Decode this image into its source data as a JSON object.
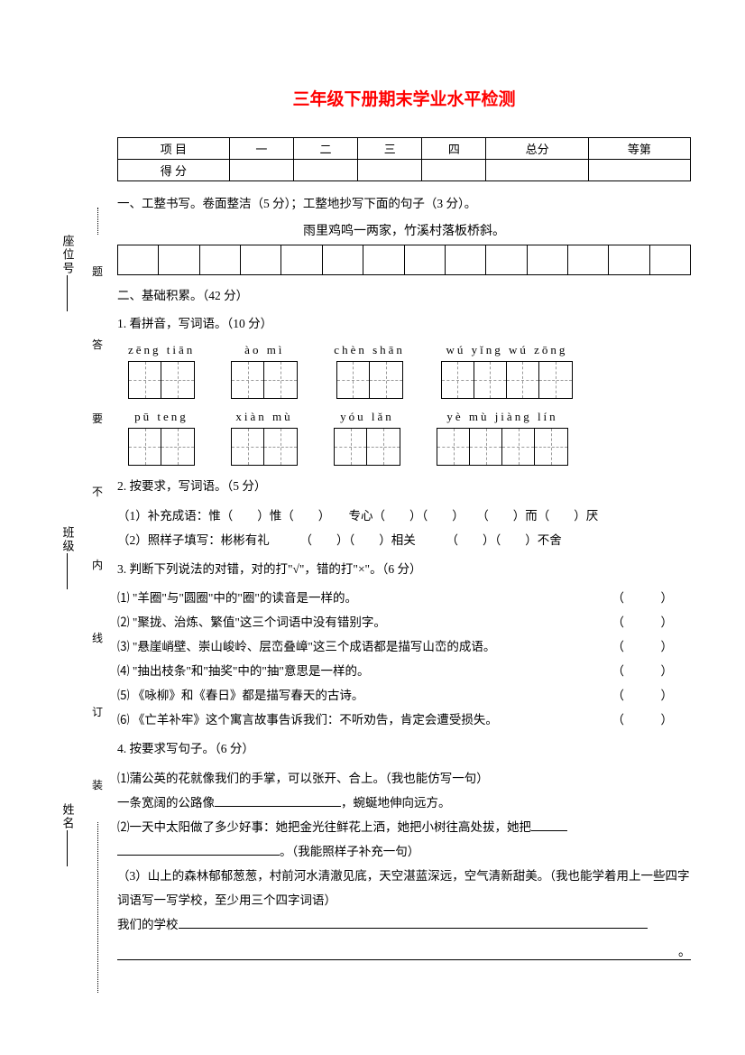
{
  "title": "三年级下册期末学业水平检测",
  "score_table": {
    "headers": [
      "项 目",
      "一",
      "二",
      "三",
      "四",
      "总分",
      "等第"
    ],
    "row2_label": "得 分"
  },
  "section1": {
    "heading": "一、工整书写。卷面整洁（5 分）；工整地抄写下面的句子（3 分）。",
    "sentence": "雨里鸡鸣一两家，竹溪村落板桥斜。",
    "grid_cells": 14
  },
  "section2": {
    "heading": "二、基础积累。（42 分）",
    "q1": {
      "label": "1. 看拼音，写词语。（10 分）",
      "row1": [
        {
          "pinyin": "zēng  tiān",
          "boxes": 2
        },
        {
          "pinyin": "ào  mì",
          "boxes": 2
        },
        {
          "pinyin": "chèn  shān",
          "boxes": 2
        },
        {
          "pinyin": "wú  yǐng  wú  zōng",
          "boxes": 4
        }
      ],
      "row2": [
        {
          "pinyin": "pū  teng",
          "boxes": 2
        },
        {
          "pinyin": "xiàn  mù",
          "boxes": 2
        },
        {
          "pinyin": "yóu  lǎn",
          "boxes": 2
        },
        {
          "pinyin": "yè  mù  jiàng  lín",
          "boxes": 4
        }
      ]
    },
    "q2": {
      "label": "2. 按要求，写词语。（5 分）",
      "line1": "（1）补充成语：惟（　　）惟（　　）　　专心（　　）（　　）　　（　　）而（　　）厌",
      "line2": "（2）照样子填写：彬彬有礼　　　（　　）（　　）相关　　　（　　）（　　）不舍"
    },
    "q3": {
      "label": "3. 判断下列说法的对错，对的打\"√\"，错的打\"×\"。（6 分）",
      "items": [
        "⑴ \"羊圈\"与\"圆圈\"中的\"圈\"的读音是一样的。",
        "⑵ \"聚拢、治炼、繁值\"这三个词语中没有错别字。",
        "⑶ \"悬崖峭壁、崇山峻岭、层峦叠嶂\"这三个成语都是描写山峦的成语。",
        "⑷ \"抽出枝条\"和\"抽奖\"中的\"抽\"意思是一样的。",
        "⑸ 《咏柳》和《春日》都是描写春天的古诗。",
        "⑹ 《亡羊补牢》这个寓言故事告诉我们：不听劝告，肯定会遭受损失。"
      ]
    },
    "q4": {
      "label": "4. 按要求写句子。（6 分）",
      "line1": "⑴蒲公英的花就像我们的手掌，可以张开、合上。（我也能仿写一句）",
      "line2a": "一条宽阔的公路像",
      "line2b": "，蜿蜒地伸向远方。",
      "line3": "⑵一天中太阳做了多少好事：她把金光往鲜花上洒，她把小树往高处拔，她把",
      "line4": "。（我能照样子补充一句）",
      "line5": "（3）山上的森林郁郁葱葱，村前河水清澈见底，天空湛蓝深远，空气清新甜美。（我也能学着用上一些四字词语写一写学校，至少用三个四字词语）",
      "line6": "我们的学校"
    }
  },
  "side": {
    "labels": [
      "姓名",
      "班级",
      "座位号"
    ],
    "inner": [
      "装",
      "订",
      "线",
      "内",
      "不",
      "要",
      "答",
      "题"
    ]
  }
}
